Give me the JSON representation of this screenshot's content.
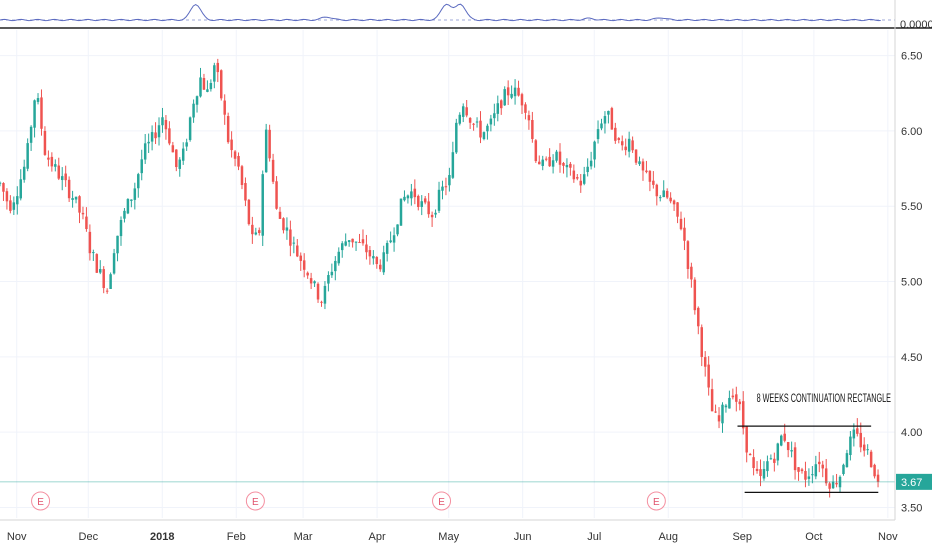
{
  "chart_data": {
    "type": "candlestick",
    "indicator_pane": {
      "axis_label": "0.0000",
      "baseline": 0
    },
    "price_axis": {
      "range": [
        3.43,
        6.67
      ],
      "ticks": [
        "6.50",
        "6.00",
        "5.50",
        "5.00",
        "4.50",
        "4.00",
        "3.50"
      ]
    },
    "time_axis": {
      "range_days": [
        -7,
        368
      ],
      "ticks": [
        {
          "label": "Nov",
          "day": 0
        },
        {
          "label": "Dec",
          "day": 30
        },
        {
          "label": "2018",
          "day": 61,
          "bold": true
        },
        {
          "label": "Feb",
          "day": 92
        },
        {
          "label": "Mar",
          "day": 120
        },
        {
          "label": "Apr",
          "day": 151
        },
        {
          "label": "May",
          "day": 181
        },
        {
          "label": "Jun",
          "day": 212
        },
        {
          "label": "Jul",
          "day": 242
        },
        {
          "label": "Aug",
          "day": 273
        },
        {
          "label": "Sep",
          "day": 304
        },
        {
          "label": "Oct",
          "day": 334
        },
        {
          "label": "Nov",
          "day": 365
        }
      ]
    },
    "last_price": {
      "value": 3.67,
      "label": "3.67",
      "color": "#26a69a"
    },
    "earnings_markers": [
      {
        "label": "E",
        "day": 10
      },
      {
        "label": "E",
        "day": 100
      },
      {
        "label": "E",
        "day": 178
      },
      {
        "label": "E",
        "day": 268
      }
    ],
    "annotation": {
      "text": "8 WEEKS CONTINUATION RECTANGLE",
      "day": 310,
      "price": 4.2,
      "top_line": {
        "day_start": 302,
        "day_end": 358,
        "price": 4.04
      },
      "bottom_line": {
        "day_start": 305,
        "day_end": 361,
        "price": 3.6
      }
    },
    "price_path": [
      [
        -7,
        5.65
      ],
      [
        -3,
        5.5
      ],
      [
        0,
        5.6
      ],
      [
        4,
        5.8
      ],
      [
        8,
        6.28
      ],
      [
        12,
        5.85
      ],
      [
        16,
        5.75
      ],
      [
        20,
        5.65
      ],
      [
        24,
        5.55
      ],
      [
        28,
        5.4
      ],
      [
        31,
        5.2
      ],
      [
        35,
        5.05
      ],
      [
        38,
        4.95
      ],
      [
        41,
        5.25
      ],
      [
        45,
        5.45
      ],
      [
        49,
        5.6
      ],
      [
        53,
        5.85
      ],
      [
        57,
        5.95
      ],
      [
        61,
        6.1
      ],
      [
        64,
        5.95
      ],
      [
        67,
        5.75
      ],
      [
        70,
        5.85
      ],
      [
        74,
        6.2
      ],
      [
        77,
        6.35
      ],
      [
        80,
        6.25
      ],
      [
        83,
        6.45
      ],
      [
        86,
        6.2
      ],
      [
        89,
        5.9
      ],
      [
        93,
        5.75
      ],
      [
        96,
        5.5
      ],
      [
        99,
        5.25
      ],
      [
        102,
        5.35
      ],
      [
        104,
        6.05
      ],
      [
        106,
        5.85
      ],
      [
        109,
        5.45
      ],
      [
        113,
        5.35
      ],
      [
        117,
        5.2
      ],
      [
        121,
        5.1
      ],
      [
        125,
        4.95
      ],
      [
        128,
        4.87
      ],
      [
        131,
        5.05
      ],
      [
        135,
        5.2
      ],
      [
        139,
        5.3
      ],
      [
        143,
        5.25
      ],
      [
        147,
        5.2
      ],
      [
        151,
        5.1
      ],
      [
        154,
        5.15
      ],
      [
        158,
        5.35
      ],
      [
        162,
        5.55
      ],
      [
        166,
        5.6
      ],
      [
        170,
        5.5
      ],
      [
        174,
        5.45
      ],
      [
        178,
        5.6
      ],
      [
        182,
        5.7
      ],
      [
        184,
        6.05
      ],
      [
        187,
        6.2
      ],
      [
        191,
        6.05
      ],
      [
        195,
        5.98
      ],
      [
        199,
        6.05
      ],
      [
        203,
        6.2
      ],
      [
        207,
        6.28
      ],
      [
        211,
        6.22
      ],
      [
        214,
        6.15
      ],
      [
        217,
        5.85
      ],
      [
        221,
        5.75
      ],
      [
        225,
        5.85
      ],
      [
        229,
        5.75
      ],
      [
        233,
        5.7
      ],
      [
        237,
        5.65
      ],
      [
        241,
        5.85
      ],
      [
        244,
        6.05
      ],
      [
        247,
        6.12
      ],
      [
        250,
        6.02
      ],
      [
        253,
        5.88
      ],
      [
        257,
        5.95
      ],
      [
        261,
        5.75
      ],
      [
        265,
        5.65
      ],
      [
        269,
        5.58
      ],
      [
        273,
        5.55
      ],
      [
        276,
        5.45
      ],
      [
        279,
        5.35
      ],
      [
        282,
        5.05
      ],
      [
        285,
        4.75
      ],
      [
        288,
        4.45
      ],
      [
        291,
        4.15
      ],
      [
        294,
        4.05
      ],
      [
        297,
        4.2
      ],
      [
        300,
        4.28
      ],
      [
        303,
        4.15
      ],
      [
        306,
        3.9
      ],
      [
        309,
        3.72
      ],
      [
        312,
        3.68
      ],
      [
        315,
        3.82
      ],
      [
        318,
        3.85
      ],
      [
        321,
        4.0
      ],
      [
        324,
        3.88
      ],
      [
        327,
        3.75
      ],
      [
        330,
        3.7
      ],
      [
        333,
        3.75
      ],
      [
        336,
        3.83
      ],
      [
        339,
        3.7
      ],
      [
        342,
        3.65
      ],
      [
        345,
        3.72
      ],
      [
        348,
        3.9
      ],
      [
        351,
        3.98
      ],
      [
        354,
        3.92
      ],
      [
        357,
        3.85
      ],
      [
        360,
        3.72
      ],
      [
        362,
        3.67
      ]
    ]
  }
}
